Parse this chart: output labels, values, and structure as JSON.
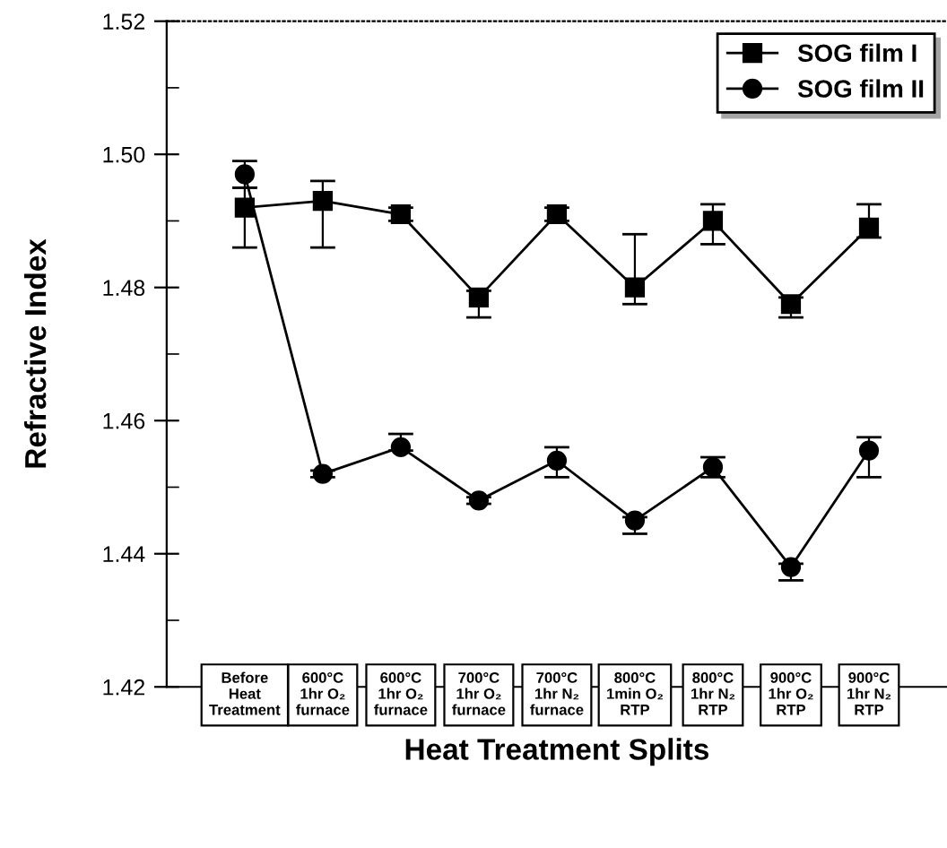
{
  "chart_data": {
    "type": "line",
    "xlabel": "Heat Treatment Splits",
    "ylabel": "Refractive Index",
    "categories": [
      "Before\nHeat\nTreatment",
      "600°C\n1hr O₂\nfurnace",
      "600°C\n1hr O₂\nfurnace",
      "700°C\n1hr O₂\nfurnace",
      "700°C\n1hr N₂\nfurnace",
      "800°C\n1min O₂\nRTP",
      "800°C\n1hr N₂\nRTP",
      "900°C\n1hr O₂\nRTP",
      "900°C\n1hr N₂\nRTP"
    ],
    "series": [
      {
        "name": "SOG film I",
        "color": "#000000",
        "marker": "square",
        "values": [
          1.492,
          1.493,
          1.491,
          1.4785,
          1.491,
          1.48,
          1.49,
          1.4775,
          1.489
        ],
        "errors": [
          [
            1.486,
            1.495
          ],
          [
            1.486,
            1.496
          ],
          [
            1.49,
            1.492
          ],
          [
            1.4755,
            1.4795
          ],
          [
            1.49,
            1.492
          ],
          [
            1.4775,
            1.488
          ],
          [
            1.4865,
            1.4925
          ],
          [
            1.4755,
            1.4785
          ],
          [
            1.4875,
            1.4925
          ]
        ]
      },
      {
        "name": "SOG film II",
        "color": "#000000",
        "marker": "circle",
        "values": [
          1.497,
          1.452,
          1.456,
          1.448,
          1.454,
          1.445,
          1.453,
          1.438,
          1.4555
        ],
        "errors": [
          [
            1.495,
            1.499
          ],
          [
            1.4515,
            1.4525
          ],
          [
            1.4555,
            1.458
          ],
          [
            1.4475,
            1.4485
          ],
          [
            1.4515,
            1.456
          ],
          [
            1.443,
            1.4455
          ],
          [
            1.4515,
            1.4545
          ],
          [
            1.436,
            1.4385
          ],
          [
            1.4515,
            1.4575
          ]
        ]
      }
    ],
    "ylim": [
      1.42,
      1.52
    ],
    "yticks": [
      1.42,
      1.44,
      1.46,
      1.48,
      {
        "value": 1.5,
        "label": "1.50"
      },
      1.52
    ],
    "line_style": "solid",
    "legend": "top right",
    "grid": false
  }
}
